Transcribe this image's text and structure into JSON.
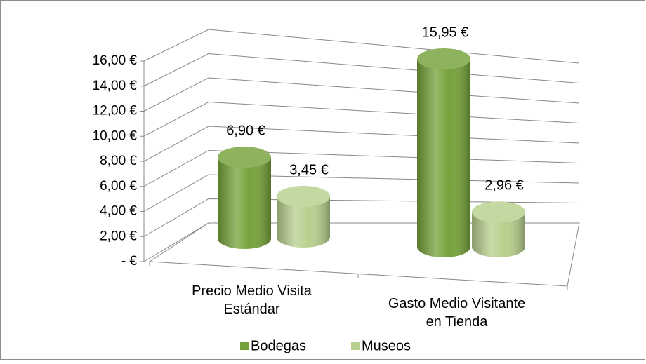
{
  "chart_data": {
    "type": "bar",
    "categories": [
      "Precio Medio Visita Estándar",
      "Gasto Medio Visitante en Tienda"
    ],
    "series": [
      {
        "name": "Bodegas",
        "color": "#76a23a",
        "values": [
          6.9,
          15.95
        ],
        "value_labels": [
          "6,90 €",
          "15,95 €"
        ]
      },
      {
        "name": "Museos",
        "color": "#b7d08d",
        "values": [
          3.45,
          2.96
        ],
        "value_labels": [
          "3,45 €",
          "2,96 €"
        ]
      }
    ],
    "ylim": [
      0,
      16
    ],
    "yticks": [
      {
        "value": 0,
        "label": "-  €"
      },
      {
        "value": 2,
        "label": "2,00 €"
      },
      {
        "value": 4,
        "label": "4,00 €"
      },
      {
        "value": 6,
        "label": "6,00 €"
      },
      {
        "value": 8,
        "label": "8,00 €"
      },
      {
        "value": 10,
        "label": "10,00 €"
      },
      {
        "value": 12,
        "label": "12,00 €"
      },
      {
        "value": 14,
        "label": "14,00 €"
      },
      {
        "value": 16,
        "label": "16,00 €"
      }
    ],
    "grid": true
  }
}
